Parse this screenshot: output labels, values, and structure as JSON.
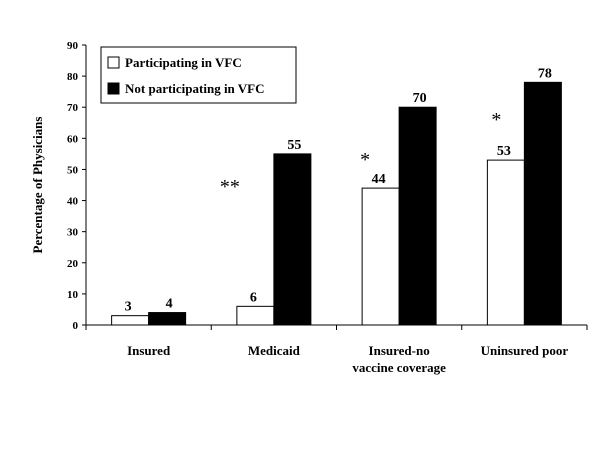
{
  "chart_data": {
    "type": "bar",
    "title": "",
    "xlabel": "",
    "ylabel": "Percentage of Physicians",
    "ylim": [
      0,
      90
    ],
    "yticks": [
      0,
      10,
      20,
      30,
      40,
      50,
      60,
      70,
      80,
      90
    ],
    "grid": false,
    "legend_position": "top-left",
    "categories": [
      [
        "Insured"
      ],
      [
        "Medicaid"
      ],
      [
        "Insured-no",
        "vaccine coverage"
      ],
      [
        "Uninsured poor"
      ]
    ],
    "series": [
      {
        "name": "Participating in VFC",
        "color": "#ffffff",
        "values": [
          3,
          6,
          44,
          53
        ]
      },
      {
        "name": "Not participating in VFC",
        "color": "#000000",
        "values": [
          4,
          55,
          70,
          78
        ]
      }
    ],
    "data_labels": [
      [
        "3",
        "6",
        "44",
        "53"
      ],
      [
        "4",
        "55",
        "70",
        "78"
      ]
    ],
    "significance_marks": [
      "",
      "**",
      "*",
      "*"
    ]
  }
}
